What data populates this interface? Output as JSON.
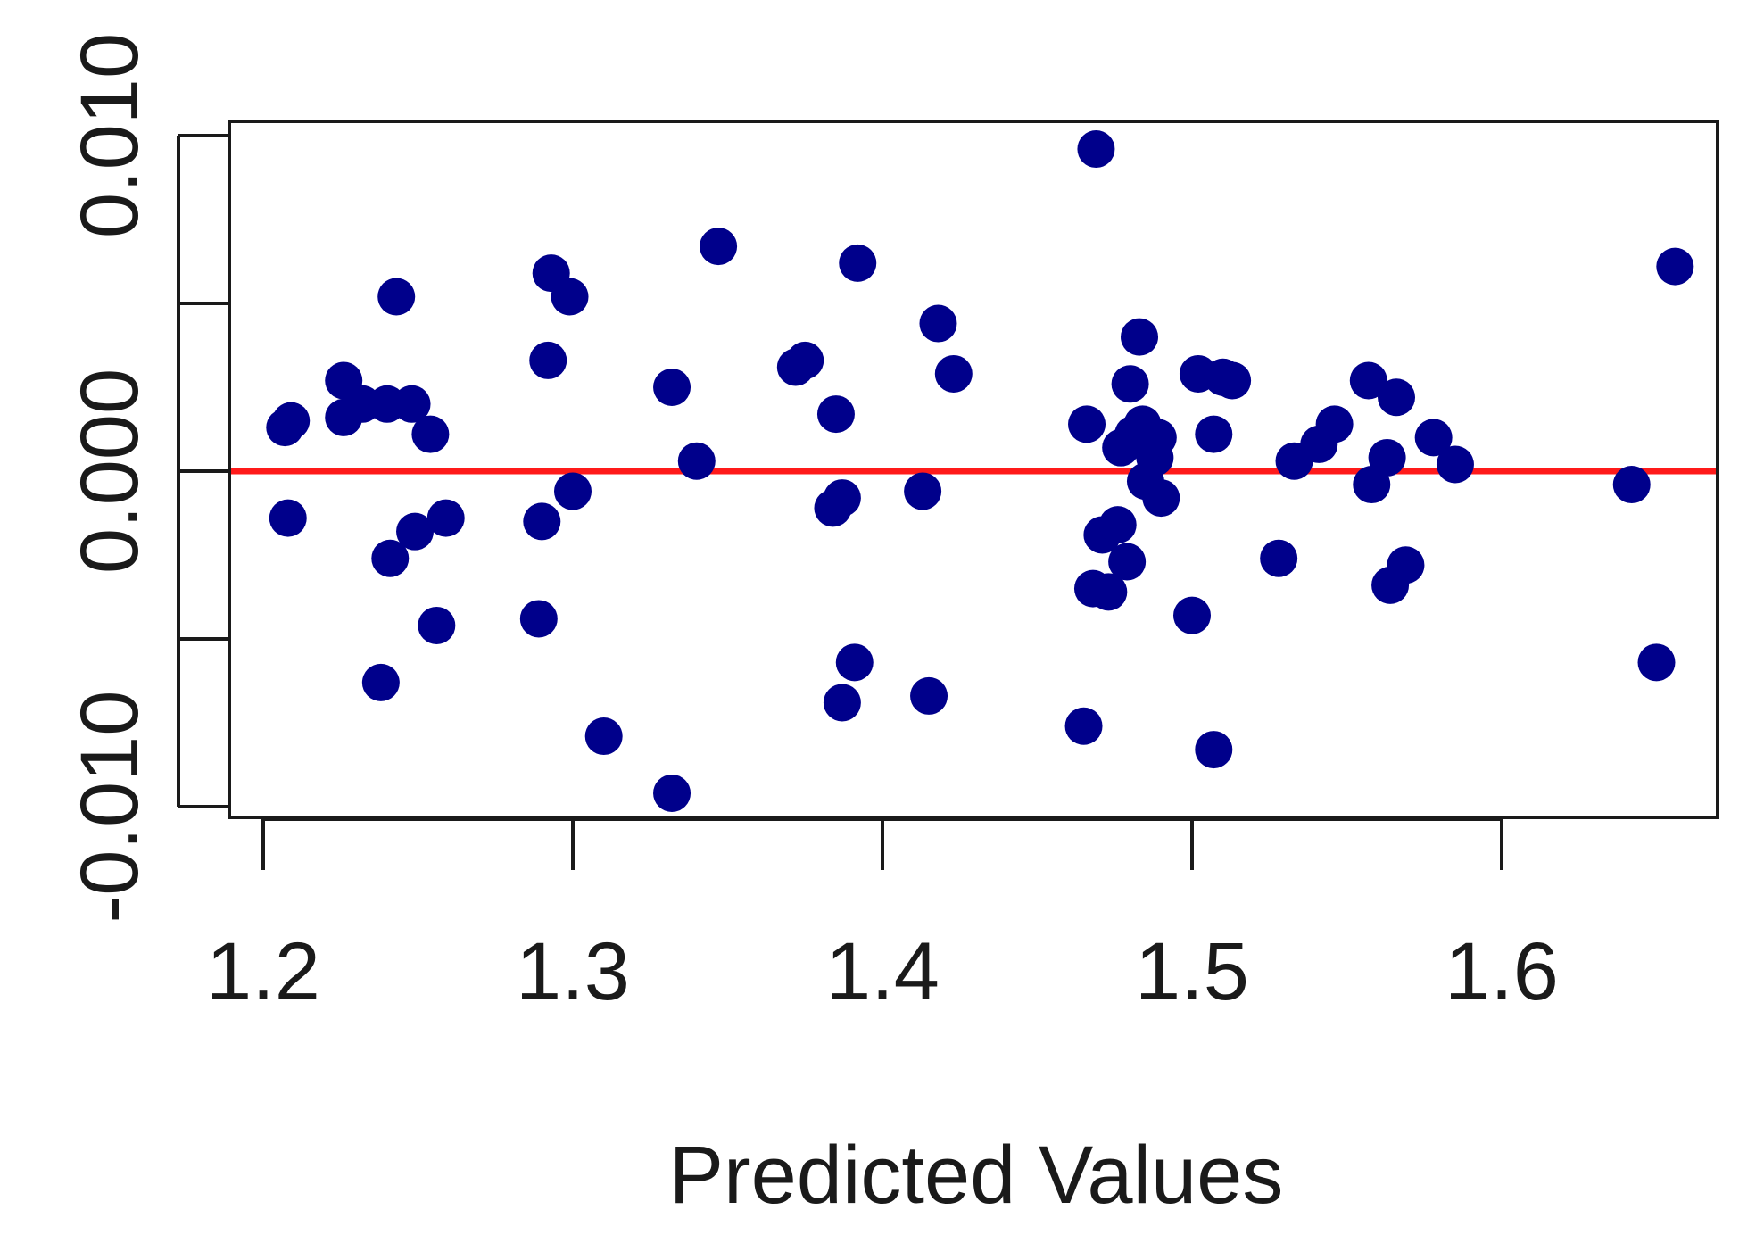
{
  "chart_data": {
    "type": "scatter",
    "title": "",
    "xlabel": "Predicted Values",
    "ylabel": "",
    "xlim": [
      1.19,
      1.67
    ],
    "ylim": [
      -0.0104,
      0.0104
    ],
    "x_ticks": [
      1.2,
      1.3,
      1.4,
      1.5,
      1.6
    ],
    "x_tick_labels": [
      "1.2",
      "1.3",
      "1.4",
      "1.5",
      "1.6"
    ],
    "y_ticks": [
      -0.01,
      -0.005,
      0.0,
      0.005,
      0.01
    ],
    "y_tick_labels": [
      "-0.010",
      "",
      "0.000",
      "",
      "0.010"
    ],
    "reference_line": {
      "y": 0.0,
      "color": "#ff1a1a"
    },
    "grid": false,
    "point_color": "#00008b",
    "series": [
      {
        "points": [
          [
            1.207,
            0.0013
          ],
          [
            1.209,
            0.0015
          ],
          [
            1.208,
            -0.0014
          ],
          [
            1.226,
            0.0027
          ],
          [
            1.226,
            0.0016
          ],
          [
            1.232,
            0.002
          ],
          [
            1.24,
            0.002
          ],
          [
            1.243,
            0.0052
          ],
          [
            1.248,
            0.002
          ],
          [
            1.254,
            0.0011
          ],
          [
            1.241,
            -0.0026
          ],
          [
            1.249,
            -0.0018
          ],
          [
            1.259,
            -0.0014
          ],
          [
            1.256,
            -0.0046
          ],
          [
            1.238,
            -0.0063
          ],
          [
            1.29,
            -0.0015
          ],
          [
            1.289,
            -0.0044
          ],
          [
            1.292,
            0.0033
          ],
          [
            1.293,
            0.0059
          ],
          [
            1.299,
            0.0052
          ],
          [
            1.3,
            -0.0006
          ],
          [
            1.31,
            -0.0079
          ],
          [
            1.332,
            0.0025
          ],
          [
            1.34,
            0.0003
          ],
          [
            1.347,
            0.0067
          ],
          [
            1.332,
            -0.0096
          ],
          [
            1.372,
            0.0031
          ],
          [
            1.375,
            0.0033
          ],
          [
            1.385,
            0.0017
          ],
          [
            1.384,
            -0.0011
          ],
          [
            1.387,
            -0.0008
          ],
          [
            1.392,
            0.0062
          ],
          [
            1.391,
            -0.0057
          ],
          [
            1.387,
            -0.0069
          ],
          [
            1.413,
            -0.0006
          ],
          [
            1.418,
            0.0044
          ],
          [
            1.423,
            0.0029
          ],
          [
            1.415,
            -0.0067
          ],
          [
            1.466,
            0.0014
          ],
          [
            1.469,
            0.0096
          ],
          [
            1.471,
            -0.0019
          ],
          [
            1.468,
            -0.0035
          ],
          [
            1.473,
            -0.0036
          ],
          [
            1.476,
            -0.0016
          ],
          [
            1.477,
            0.0007
          ],
          [
            1.479,
            -0.0027
          ],
          [
            1.48,
            0.0026
          ],
          [
            1.481,
            0.0011
          ],
          [
            1.483,
            0.004
          ],
          [
            1.484,
            0.0014
          ],
          [
            1.485,
            -0.0003
          ],
          [
            1.487,
            0.0009
          ],
          [
            1.488,
            0.0004
          ],
          [
            1.489,
            0.001
          ],
          [
            1.49,
            -0.0008
          ],
          [
            1.465,
            -0.0076
          ],
          [
            1.5,
            -0.0043
          ],
          [
            1.502,
            0.0029
          ],
          [
            1.507,
            0.0011
          ],
          [
            1.51,
            0.0028
          ],
          [
            1.513,
            0.0027
          ],
          [
            1.507,
            -0.0083
          ],
          [
            1.528,
            -0.0026
          ],
          [
            1.533,
            0.0003
          ],
          [
            1.541,
            0.0008
          ],
          [
            1.546,
            0.0014
          ],
          [
            1.557,
            0.0027
          ],
          [
            1.558,
            -0.0004
          ],
          [
            1.563,
            0.0004
          ],
          [
            1.566,
            0.0022
          ],
          [
            1.564,
            -0.0034
          ],
          [
            1.569,
            -0.0028
          ],
          [
            1.578,
            0.001
          ],
          [
            1.585,
            0.0002
          ],
          [
            1.642,
            -0.0004
          ],
          [
            1.65,
            -0.0057
          ],
          [
            1.656,
            0.0061
          ]
        ]
      }
    ]
  }
}
